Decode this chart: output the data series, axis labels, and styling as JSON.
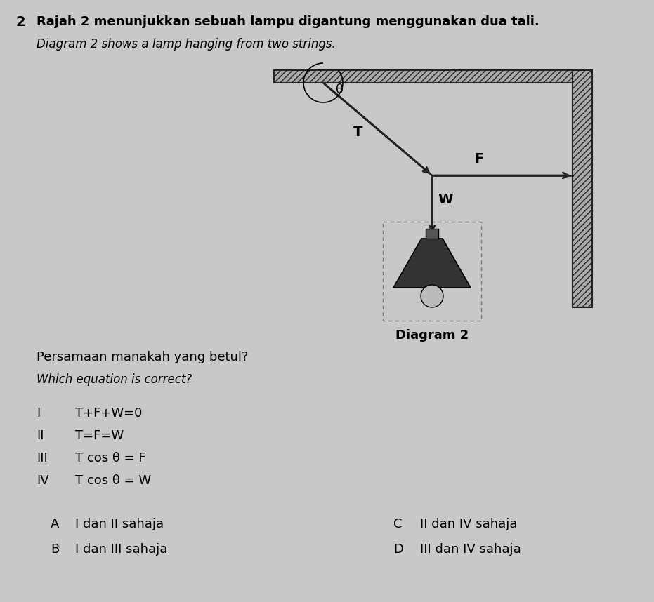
{
  "bg_color": "#c8c8c8",
  "title_number": "2",
  "title_malay": "Rajah 2 menunjukkan sebuah lampu digantung menggunakan dua tali.",
  "title_english": "Diagram 2 shows a lamp hanging from two strings.",
  "diagram_label": "Diagram 2",
  "question_malay": "Persamaan manakah yang betul?",
  "question_english": "Which equation is correct?",
  "frame_color": "#222222",
  "hatch_color": "#555555",
  "ceiling_bar_color": "#aaaaaa",
  "wall_bar_color": "#aaaaaa",
  "lamp_shade_color": "#333333",
  "lamp_bulb_color": "#bbbbbb",
  "node_color": "#111111"
}
